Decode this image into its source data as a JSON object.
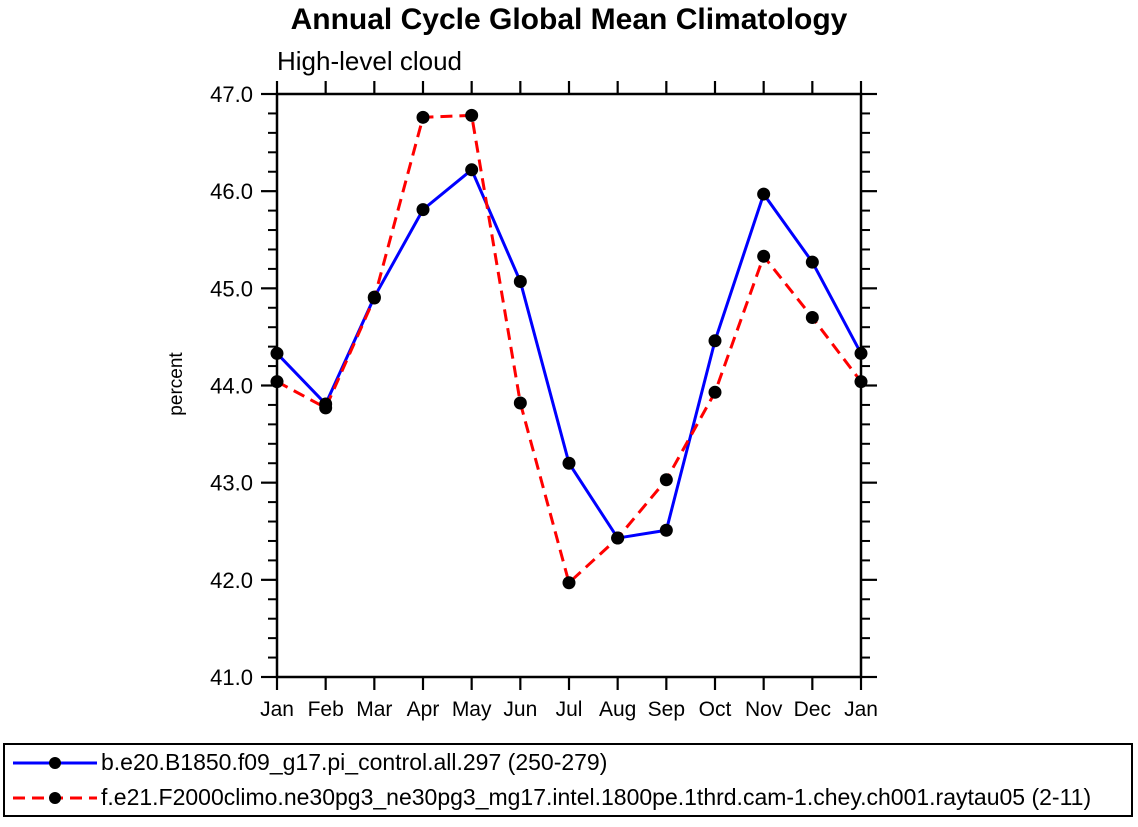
{
  "chart_data": {
    "type": "line",
    "title": "Annual Cycle Global Mean Climatology",
    "subtitle": "High-level cloud",
    "ylabel": "percent",
    "xlabel": "",
    "categories": [
      "Jan",
      "Feb",
      "Mar",
      "Apr",
      "May",
      "Jun",
      "Jul",
      "Aug",
      "Sep",
      "Oct",
      "Nov",
      "Dec",
      "Jan"
    ],
    "ylim": [
      41.0,
      47.0
    ],
    "yticks": [
      {
        "value": 41.0,
        "label": "41.0"
      },
      {
        "value": 42.0,
        "label": "42.0"
      },
      {
        "value": 43.0,
        "label": "43.0"
      },
      {
        "value": 44.0,
        "label": "44.0"
      },
      {
        "value": 45.0,
        "label": "45.0"
      },
      {
        "value": 46.0,
        "label": "46.0"
      },
      {
        "value": 47.0,
        "label": "47.0"
      }
    ],
    "y_minor_step": 0.2,
    "grid": false,
    "legend_position": "bottom-box",
    "marker": "filled-circle",
    "marker_color": "#000000",
    "axis_color": "#000000",
    "series": [
      {
        "name": "b.e20.B1850.f09_g17.pi_control.all.297 (250-279)",
        "color": "#0000ff",
        "line_style": "solid",
        "dash": "",
        "values": [
          44.33,
          43.81,
          44.91,
          45.81,
          46.22,
          45.07,
          43.2,
          42.43,
          42.51,
          44.46,
          45.97,
          45.27,
          44.33
        ]
      },
      {
        "name": "f.e21.F2000climo.ne30pg3_ne30pg3_mg17.intel.1800pe.1thrd.cam-1.chey.ch001.raytau05 (2-11)",
        "color": "#ff0000",
        "line_style": "dashed",
        "dash": "12 7",
        "values": [
          44.04,
          43.77,
          44.9,
          46.76,
          46.78,
          43.82,
          41.97,
          42.43,
          43.03,
          43.93,
          45.33,
          44.7,
          44.04
        ]
      }
    ]
  }
}
